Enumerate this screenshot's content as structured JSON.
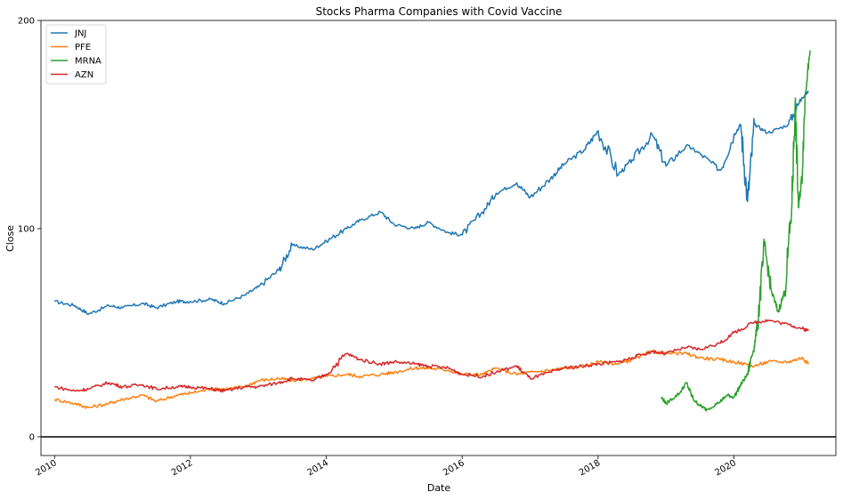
{
  "chart_data": {
    "type": "line",
    "title": "Stocks Pharma Companies with Covid Vaccine",
    "xlabel": "Date",
    "ylabel": "Close",
    "xlim": [
      2009.8,
      2021.5
    ],
    "ylim": [
      -9,
      200
    ],
    "yticks": [
      0,
      100,
      200
    ],
    "xticks": [
      2010,
      2012,
      2014,
      2016,
      2018,
      2020
    ],
    "hline": 0,
    "legend_position": "top-left",
    "grid": false,
    "series": [
      {
        "name": "JNJ",
        "color": "#1f77b4",
        "x": [
          2010.0,
          2010.3,
          2010.5,
          2010.8,
          2011.0,
          2011.3,
          2011.5,
          2011.8,
          2012.0,
          2012.3,
          2012.5,
          2012.8,
          2013.0,
          2013.3,
          2013.5,
          2013.8,
          2014.0,
          2014.3,
          2014.5,
          2014.8,
          2015.0,
          2015.3,
          2015.5,
          2015.8,
          2016.0,
          2016.3,
          2016.5,
          2016.8,
          2017.0,
          2017.3,
          2017.5,
          2017.8,
          2018.0,
          2018.3,
          2018.5,
          2018.8,
          2019.0,
          2019.3,
          2019.5,
          2019.8,
          2020.0,
          2020.1,
          2020.2,
          2020.3,
          2020.5,
          2020.8,
          2021.0,
          2021.1
        ],
        "y": [
          65,
          63,
          59,
          63,
          62,
          64,
          62,
          65,
          65,
          66,
          64,
          68,
          72,
          80,
          92,
          90,
          94,
          100,
          104,
          108,
          102,
          100,
          103,
          98,
          97,
          108,
          117,
          122,
          115,
          124,
          131,
          138,
          147,
          126,
          133,
          145,
          130,
          140,
          136,
          128,
          145,
          150,
          113,
          150,
          146,
          150,
          163,
          166
        ]
      },
      {
        "name": "PFE",
        "color": "#ff7f0e",
        "x": [
          2010.0,
          2010.3,
          2010.5,
          2010.8,
          2011.0,
          2011.3,
          2011.5,
          2011.8,
          2012.0,
          2012.3,
          2012.5,
          2012.8,
          2013.0,
          2013.3,
          2013.5,
          2013.8,
          2014.0,
          2014.3,
          2014.5,
          2014.8,
          2015.0,
          2015.3,
          2015.5,
          2015.8,
          2016.0,
          2016.3,
          2016.5,
          2016.8,
          2017.0,
          2017.3,
          2017.5,
          2017.8,
          2018.0,
          2018.3,
          2018.5,
          2018.8,
          2019.0,
          2019.3,
          2019.5,
          2019.8,
          2020.0,
          2020.3,
          2020.5,
          2020.8,
          2021.0,
          2021.1
        ],
        "y": [
          18,
          16,
          14,
          16,
          18,
          20,
          17,
          20,
          21,
          23,
          23,
          24,
          27,
          28,
          27,
          28,
          29,
          30,
          29,
          30,
          31,
          33,
          33,
          32,
          30,
          30,
          33,
          30,
          31,
          32,
          33,
          34,
          36,
          35,
          37,
          41,
          40,
          40,
          38,
          37,
          36,
          34,
          36,
          36,
          38,
          35
        ]
      },
      {
        "name": "MRNA",
        "color": "#2ca02c",
        "x": [
          2018.93,
          2019.0,
          2019.2,
          2019.3,
          2019.4,
          2019.5,
          2019.6,
          2019.8,
          2019.9,
          2020.0,
          2020.1,
          2020.2,
          2020.3,
          2020.35,
          2020.45,
          2020.55,
          2020.65,
          2020.75,
          2020.85,
          2020.9,
          2020.95,
          2021.0,
          2021.05,
          2021.1,
          2021.12
        ],
        "y": [
          19,
          16,
          21,
          26,
          18,
          15,
          13,
          17,
          20,
          19,
          25,
          30,
          44,
          55,
          92,
          70,
          60,
          70,
          110,
          160,
          110,
          125,
          165,
          180,
          185
        ]
      },
      {
        "name": "AZN",
        "color": "#d62728",
        "x": [
          2010.0,
          2010.3,
          2010.5,
          2010.8,
          2011.0,
          2011.3,
          2011.5,
          2011.8,
          2012.0,
          2012.3,
          2012.5,
          2012.8,
          2013.0,
          2013.3,
          2013.5,
          2013.8,
          2014.0,
          2014.3,
          2014.5,
          2014.8,
          2015.0,
          2015.3,
          2015.5,
          2015.8,
          2016.0,
          2016.3,
          2016.5,
          2016.8,
          2017.0,
          2017.3,
          2017.5,
          2017.8,
          2018.0,
          2018.3,
          2018.5,
          2018.8,
          2019.0,
          2019.3,
          2019.5,
          2019.8,
          2020.0,
          2020.3,
          2020.5,
          2020.8,
          2021.0,
          2021.1
        ],
        "y": [
          24,
          22,
          23,
          26,
          24,
          25,
          23,
          24,
          24,
          23,
          22,
          24,
          24,
          26,
          28,
          27,
          30,
          40,
          37,
          35,
          36,
          35,
          34,
          33,
          30,
          29,
          31,
          34,
          28,
          31,
          33,
          34,
          35,
          36,
          38,
          41,
          40,
          43,
          42,
          45,
          50,
          55,
          56,
          54,
          52,
          51
        ]
      }
    ]
  }
}
